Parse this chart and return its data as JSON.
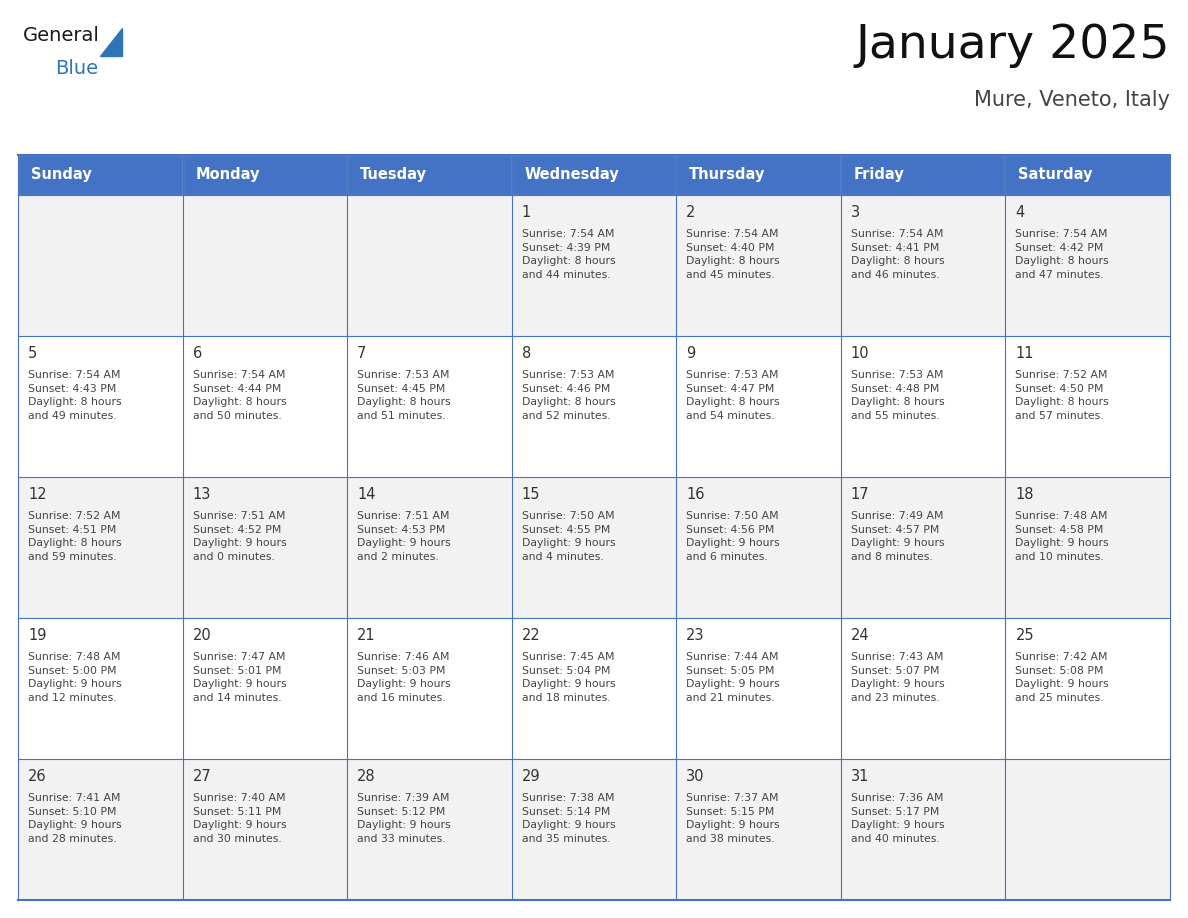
{
  "title": "January 2025",
  "subtitle": "Mure, Veneto, Italy",
  "days_of_week": [
    "Sunday",
    "Monday",
    "Tuesday",
    "Wednesday",
    "Thursday",
    "Friday",
    "Saturday"
  ],
  "header_bg": "#4472C4",
  "header_text_color": "#FFFFFF",
  "cell_bg_odd": "#F2F2F2",
  "cell_bg_even": "#FFFFFF",
  "border_color": "#4472C4",
  "text_color": "#444444",
  "day_number_color": "#333333",
  "logo_black": "#1a1a1a",
  "logo_blue": "#2E75B6",
  "calendar_data": [
    [
      {
        "day": null,
        "info": null
      },
      {
        "day": null,
        "info": null
      },
      {
        "day": null,
        "info": null
      },
      {
        "day": 1,
        "info": "Sunrise: 7:54 AM\nSunset: 4:39 PM\nDaylight: 8 hours\nand 44 minutes."
      },
      {
        "day": 2,
        "info": "Sunrise: 7:54 AM\nSunset: 4:40 PM\nDaylight: 8 hours\nand 45 minutes."
      },
      {
        "day": 3,
        "info": "Sunrise: 7:54 AM\nSunset: 4:41 PM\nDaylight: 8 hours\nand 46 minutes."
      },
      {
        "day": 4,
        "info": "Sunrise: 7:54 AM\nSunset: 4:42 PM\nDaylight: 8 hours\nand 47 minutes."
      }
    ],
    [
      {
        "day": 5,
        "info": "Sunrise: 7:54 AM\nSunset: 4:43 PM\nDaylight: 8 hours\nand 49 minutes."
      },
      {
        "day": 6,
        "info": "Sunrise: 7:54 AM\nSunset: 4:44 PM\nDaylight: 8 hours\nand 50 minutes."
      },
      {
        "day": 7,
        "info": "Sunrise: 7:53 AM\nSunset: 4:45 PM\nDaylight: 8 hours\nand 51 minutes."
      },
      {
        "day": 8,
        "info": "Sunrise: 7:53 AM\nSunset: 4:46 PM\nDaylight: 8 hours\nand 52 minutes."
      },
      {
        "day": 9,
        "info": "Sunrise: 7:53 AM\nSunset: 4:47 PM\nDaylight: 8 hours\nand 54 minutes."
      },
      {
        "day": 10,
        "info": "Sunrise: 7:53 AM\nSunset: 4:48 PM\nDaylight: 8 hours\nand 55 minutes."
      },
      {
        "day": 11,
        "info": "Sunrise: 7:52 AM\nSunset: 4:50 PM\nDaylight: 8 hours\nand 57 minutes."
      }
    ],
    [
      {
        "day": 12,
        "info": "Sunrise: 7:52 AM\nSunset: 4:51 PM\nDaylight: 8 hours\nand 59 minutes."
      },
      {
        "day": 13,
        "info": "Sunrise: 7:51 AM\nSunset: 4:52 PM\nDaylight: 9 hours\nand 0 minutes."
      },
      {
        "day": 14,
        "info": "Sunrise: 7:51 AM\nSunset: 4:53 PM\nDaylight: 9 hours\nand 2 minutes."
      },
      {
        "day": 15,
        "info": "Sunrise: 7:50 AM\nSunset: 4:55 PM\nDaylight: 9 hours\nand 4 minutes."
      },
      {
        "day": 16,
        "info": "Sunrise: 7:50 AM\nSunset: 4:56 PM\nDaylight: 9 hours\nand 6 minutes."
      },
      {
        "day": 17,
        "info": "Sunrise: 7:49 AM\nSunset: 4:57 PM\nDaylight: 9 hours\nand 8 minutes."
      },
      {
        "day": 18,
        "info": "Sunrise: 7:48 AM\nSunset: 4:58 PM\nDaylight: 9 hours\nand 10 minutes."
      }
    ],
    [
      {
        "day": 19,
        "info": "Sunrise: 7:48 AM\nSunset: 5:00 PM\nDaylight: 9 hours\nand 12 minutes."
      },
      {
        "day": 20,
        "info": "Sunrise: 7:47 AM\nSunset: 5:01 PM\nDaylight: 9 hours\nand 14 minutes."
      },
      {
        "day": 21,
        "info": "Sunrise: 7:46 AM\nSunset: 5:03 PM\nDaylight: 9 hours\nand 16 minutes."
      },
      {
        "day": 22,
        "info": "Sunrise: 7:45 AM\nSunset: 5:04 PM\nDaylight: 9 hours\nand 18 minutes."
      },
      {
        "day": 23,
        "info": "Sunrise: 7:44 AM\nSunset: 5:05 PM\nDaylight: 9 hours\nand 21 minutes."
      },
      {
        "day": 24,
        "info": "Sunrise: 7:43 AM\nSunset: 5:07 PM\nDaylight: 9 hours\nand 23 minutes."
      },
      {
        "day": 25,
        "info": "Sunrise: 7:42 AM\nSunset: 5:08 PM\nDaylight: 9 hours\nand 25 minutes."
      }
    ],
    [
      {
        "day": 26,
        "info": "Sunrise: 7:41 AM\nSunset: 5:10 PM\nDaylight: 9 hours\nand 28 minutes."
      },
      {
        "day": 27,
        "info": "Sunrise: 7:40 AM\nSunset: 5:11 PM\nDaylight: 9 hours\nand 30 minutes."
      },
      {
        "day": 28,
        "info": "Sunrise: 7:39 AM\nSunset: 5:12 PM\nDaylight: 9 hours\nand 33 minutes."
      },
      {
        "day": 29,
        "info": "Sunrise: 7:38 AM\nSunset: 5:14 PM\nDaylight: 9 hours\nand 35 minutes."
      },
      {
        "day": 30,
        "info": "Sunrise: 7:37 AM\nSunset: 5:15 PM\nDaylight: 9 hours\nand 38 minutes."
      },
      {
        "day": 31,
        "info": "Sunrise: 7:36 AM\nSunset: 5:17 PM\nDaylight: 9 hours\nand 40 minutes."
      },
      {
        "day": null,
        "info": null
      }
    ]
  ]
}
